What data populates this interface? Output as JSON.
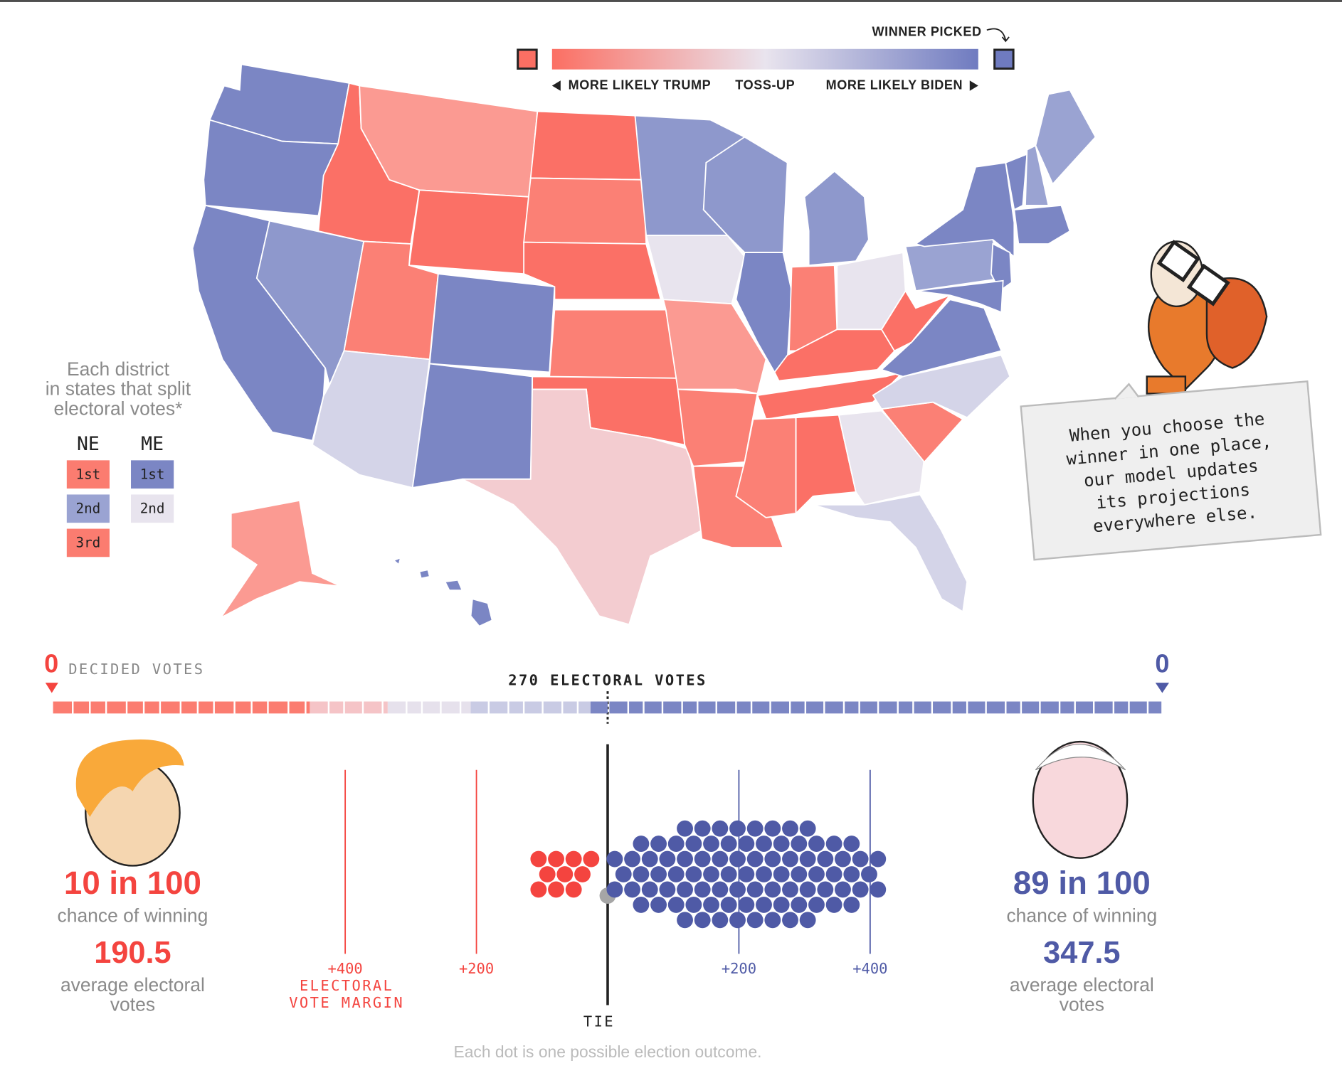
{
  "legend": {
    "winner_picked": "WINNER PICKED",
    "trump": "MORE LIKELY TRUMP",
    "tossup": "TOSS-UP",
    "biden": "MORE LIKELY BIDEN"
  },
  "districts": {
    "title": [
      "Each district",
      "in states that split",
      "electoral votes*"
    ],
    "ne": {
      "label": "NE",
      "items": [
        "1st",
        "2nd",
        "3rd"
      ]
    },
    "me": {
      "label": "ME",
      "items": [
        "1st",
        "2nd"
      ]
    }
  },
  "callout": [
    "When you choose the",
    "winner in one place,",
    "our model updates",
    "its projections",
    "everywhere else."
  ],
  "ev_bar": {
    "trump_decided": 0,
    "label": "DECIDED VOTES",
    "biden_decided": 0,
    "threshold": "270 ELECTORAL VOTES"
  },
  "trump": {
    "odds": "10 in 100",
    "odds_label": "chance of winning",
    "average": 190.5,
    "average_label": [
      "average electoral",
      "votes"
    ]
  },
  "biden": {
    "odds": "89 in 100",
    "odds_label": "chance of winning",
    "average": 347.5,
    "average_label": [
      "average electoral",
      "votes"
    ]
  },
  "chart_data": {
    "type": "beeswarm",
    "x_label": [
      "ELECTORAL",
      "VOTE MARGIN"
    ],
    "xlim": [
      -600,
      600
    ],
    "xticks": [
      {
        "value": -400,
        "label": "+400"
      },
      {
        "value": -200,
        "label": "+200"
      },
      {
        "value": 0,
        "label": "TIE"
      },
      {
        "value": 200,
        "label": "+200"
      },
      {
        "value": 400,
        "label": "+400"
      }
    ],
    "groups": [
      {
        "color": "#f4443f",
        "count": 10
      },
      {
        "color": "#a6a6a6",
        "count": 1
      },
      {
        "color": "#4f5aa6",
        "count": 89
      }
    ],
    "note": "Each dot is one possible election outcome."
  }
}
